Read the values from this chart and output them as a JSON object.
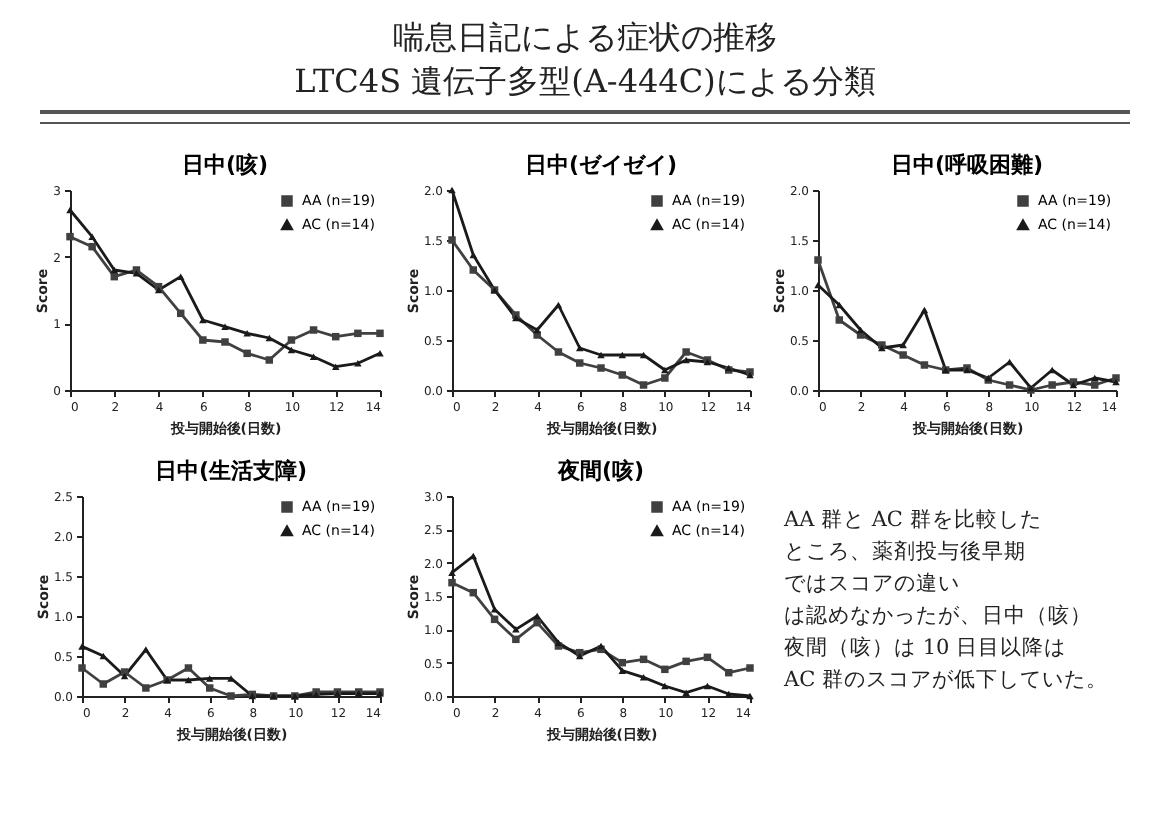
{
  "chart_data": [
    {
      "type": "other",
      "title": "喘息日記による症状の推移",
      "subtitle": "LTC4S 遺伝子多型(A-444C)による分類"
    },
    {
      "type": "line",
      "title": "日中(咳)",
      "xlabel": "投与開始後(日数)",
      "ylabel": "Score",
      "x": [
        0,
        1,
        2,
        3,
        4,
        5,
        6,
        7,
        8,
        9,
        10,
        11,
        12,
        13,
        14
      ],
      "xlim": [
        0,
        14
      ],
      "xticks": [
        0,
        2,
        4,
        6,
        8,
        10,
        12,
        14
      ],
      "ylim": [
        0,
        3
      ],
      "yticks": [
        0,
        1,
        2,
        3
      ],
      "legend": "top right",
      "series": [
        {
          "name": "AA (n=19)",
          "color": "#404040",
          "marker": "square",
          "values": [
            2.3,
            2.15,
            1.7,
            1.8,
            1.55,
            1.15,
            0.75,
            0.72,
            0.55,
            0.45,
            0.75,
            0.9,
            0.8,
            0.85,
            0.85
          ]
        },
        {
          "name": "AC (n=14)",
          "color": "#1a1a1a",
          "marker": "triangle",
          "values": [
            2.7,
            2.3,
            1.8,
            1.75,
            1.5,
            1.7,
            1.05,
            0.95,
            0.85,
            0.78,
            0.6,
            0.5,
            0.35,
            0.4,
            0.55
          ]
        }
      ]
    },
    {
      "type": "line",
      "title": "日中(ゼイゼイ)",
      "xlabel": "投与開始後(日数)",
      "ylabel": "Score",
      "x": [
        0,
        1,
        2,
        3,
        4,
        5,
        6,
        7,
        8,
        9,
        10,
        11,
        12,
        13,
        14
      ],
      "xlim": [
        0,
        14
      ],
      "xticks": [
        0,
        2,
        4,
        6,
        8,
        10,
        12,
        14
      ],
      "ylim": [
        0,
        2
      ],
      "yticks": [
        {
          "value": 0,
          "label": "0.0"
        },
        0.5,
        {
          "value": 1,
          "label": "1.0"
        },
        1.5,
        {
          "value": 2,
          "label": "2.0"
        }
      ],
      "legend": "top right",
      "series": [
        {
          "name": "AA (n=19)",
          "color": "#404040",
          "marker": "square",
          "values": [
            1.5,
            1.2,
            1.0,
            0.75,
            0.55,
            0.38,
            0.27,
            0.22,
            0.15,
            0.05,
            0.12,
            0.38,
            0.3,
            0.2,
            0.18
          ]
        },
        {
          "name": "AC (n=14)",
          "color": "#1a1a1a",
          "marker": "triangle",
          "values": [
            2.0,
            1.35,
            1.0,
            0.72,
            0.6,
            0.85,
            0.42,
            0.35,
            0.35,
            0.35,
            0.2,
            0.3,
            0.28,
            0.22,
            0.15
          ]
        }
      ]
    },
    {
      "type": "line",
      "title": "日中(呼吸困難)",
      "xlabel": "投与開始後(日数)",
      "ylabel": "Score",
      "x": [
        0,
        1,
        2,
        3,
        4,
        5,
        6,
        7,
        8,
        9,
        10,
        11,
        12,
        13,
        14
      ],
      "xlim": [
        0,
        14
      ],
      "xticks": [
        0,
        2,
        4,
        6,
        8,
        10,
        12,
        14
      ],
      "ylim": [
        0,
        2
      ],
      "yticks": [
        {
          "value": 0,
          "label": "0.0"
        },
        0.5,
        {
          "value": 1,
          "label": "1.0"
        },
        1.5,
        {
          "value": 2,
          "label": "2.0"
        }
      ],
      "legend": "top right",
      "series": [
        {
          "name": "AA (n=19)",
          "color": "#404040",
          "marker": "square",
          "values": [
            1.3,
            0.7,
            0.55,
            0.45,
            0.35,
            0.25,
            0.2,
            0.22,
            0.1,
            0.05,
            0.0,
            0.05,
            0.08,
            0.05,
            0.12
          ]
        },
        {
          "name": "AC (n=14)",
          "color": "#1a1a1a",
          "marker": "triangle",
          "values": [
            1.05,
            0.85,
            0.6,
            0.42,
            0.45,
            0.8,
            0.2,
            0.2,
            0.12,
            0.28,
            0.02,
            0.2,
            0.05,
            0.12,
            0.08
          ]
        }
      ]
    },
    {
      "type": "line",
      "title": "日中(生活支障)",
      "xlabel": "投与開始後(日数)",
      "ylabel": "Score",
      "x": [
        0,
        1,
        2,
        3,
        4,
        5,
        6,
        7,
        8,
        9,
        10,
        11,
        12,
        13,
        14
      ],
      "xlim": [
        0,
        14
      ],
      "xticks": [
        0,
        2,
        4,
        6,
        8,
        10,
        12,
        14
      ],
      "ylim": [
        0,
        2.5
      ],
      "yticks": [
        {
          "value": 0,
          "label": "0.0"
        },
        0.5,
        {
          "value": 1,
          "label": "1.0"
        },
        1.5,
        {
          "value": 2,
          "label": "2.0"
        },
        2.5
      ],
      "legend": "top right",
      "series": [
        {
          "name": "AA (n=19)",
          "color": "#404040",
          "marker": "square",
          "values": [
            0.35,
            0.15,
            0.3,
            0.1,
            0.2,
            0.35,
            0.1,
            0,
            0.02,
            0,
            0,
            0.05,
            0.05,
            0.05,
            0.05
          ]
        },
        {
          "name": "AC (n=14)",
          "color": "#1a1a1a",
          "marker": "triangle",
          "values": [
            0.62,
            0.5,
            0.25,
            0.58,
            0.2,
            0.2,
            0.22,
            0.22,
            0,
            0,
            0,
            0.02,
            0.03,
            0.03,
            0.03
          ]
        }
      ]
    },
    {
      "type": "line",
      "title": "夜間(咳)",
      "xlabel": "投与開始後(日数)",
      "ylabel": "Score",
      "x": [
        0,
        1,
        2,
        3,
        4,
        5,
        6,
        7,
        8,
        9,
        10,
        11,
        12,
        13,
        14
      ],
      "xlim": [
        0,
        14
      ],
      "xticks": [
        0,
        2,
        4,
        6,
        8,
        10,
        12,
        14
      ],
      "ylim": [
        0,
        3
      ],
      "yticks": [
        {
          "value": 0,
          "label": "0.0"
        },
        0.5,
        {
          "value": 1,
          "label": "1.0"
        },
        1.5,
        {
          "value": 2,
          "label": "2.0"
        },
        2.5,
        {
          "value": 3,
          "label": "3.0"
        }
      ],
      "legend": "top right",
      "series": [
        {
          "name": "AA (n=19)",
          "color": "#404040",
          "marker": "square",
          "values": [
            1.7,
            1.55,
            1.15,
            0.85,
            1.1,
            0.75,
            0.65,
            0.7,
            0.5,
            0.55,
            0.4,
            0.52,
            0.58,
            0.35,
            0.42
          ]
        },
        {
          "name": "AC (n=14)",
          "color": "#1a1a1a",
          "marker": "triangle",
          "values": [
            1.85,
            2.1,
            1.3,
            1.0,
            1.2,
            0.8,
            0.6,
            0.75,
            0.38,
            0.28,
            0.15,
            0.05,
            0.15,
            0.03,
            0.0
          ]
        }
      ]
    },
    {
      "type": "other",
      "annotations": [
        "AA 群と AC 群を比較した",
        "ところ、薬剤投与後早期",
        "ではスコアの違い",
        "は認めなかったが、日中（咳）",
        "夜間（咳）は 10 日目以降は",
        "AC 群のスコアが低下していた。"
      ]
    }
  ]
}
